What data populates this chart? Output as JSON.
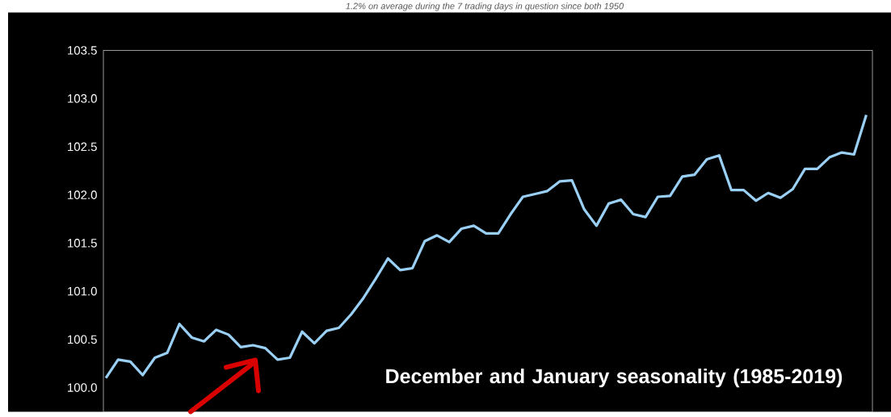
{
  "chart_data": {
    "type": "line",
    "title": "December and January seasonality (1985-2019)",
    "annotations": [
      "1.2% on average during the 7 trading days in question since both 1950"
    ],
    "categories": [
      null,
      null,
      null,
      null,
      null,
      null,
      null,
      null,
      null,
      null,
      null,
      null,
      null,
      null,
      null,
      null,
      null,
      null,
      null,
      null,
      null,
      null,
      null,
      null,
      null,
      null,
      null,
      null,
      null,
      null,
      null,
      null,
      null,
      null,
      null,
      null,
      null,
      null,
      null,
      null,
      null,
      null,
      null,
      null,
      null,
      null,
      null,
      null,
      null,
      null,
      null,
      null,
      null,
      null,
      null,
      null,
      null,
      null,
      null,
      null,
      null,
      null,
      null
    ],
    "series": [
      {
        "color": "#9ad0f5",
        "values": [
          100.1,
          100.29,
          100.27,
          100.13,
          100.31,
          100.36,
          100.66,
          100.52,
          100.48,
          100.6,
          100.55,
          100.42,
          100.44,
          100.41,
          100.29,
          100.31,
          100.58,
          100.46,
          100.59,
          100.62,
          100.76,
          100.93,
          101.13,
          101.34,
          101.22,
          101.24,
          101.52,
          101.58,
          101.51,
          101.65,
          101.68,
          101.6,
          101.6,
          101.8,
          101.98,
          102.01,
          102.04,
          102.14,
          102.15,
          101.85,
          101.68,
          101.91,
          101.95,
          101.8,
          101.77,
          101.98,
          101.99,
          102.19,
          102.21,
          102.37,
          102.41,
          102.05,
          102.05,
          101.94,
          102.02,
          101.97,
          102.06,
          102.27,
          102.27,
          102.39,
          102.44,
          102.42,
          102.83
        ]
      }
    ],
    "ylim": [
      99.75,
      103.5
    ],
    "yticks": [
      {
        "value": 100.0,
        "label": "100.0"
      },
      {
        "value": 100.5,
        "label": "100.5"
      },
      {
        "value": 101.0,
        "label": "101.0"
      },
      {
        "value": 101.5,
        "label": "101.5"
      },
      {
        "value": 102.0,
        "label": "102.0"
      },
      {
        "value": 102.5,
        "label": "102.5"
      },
      {
        "value": 103.0,
        "label": "103.0"
      },
      {
        "value": 103.5,
        "label": "103.5"
      }
    ],
    "tick_labels": "y"
  }
}
